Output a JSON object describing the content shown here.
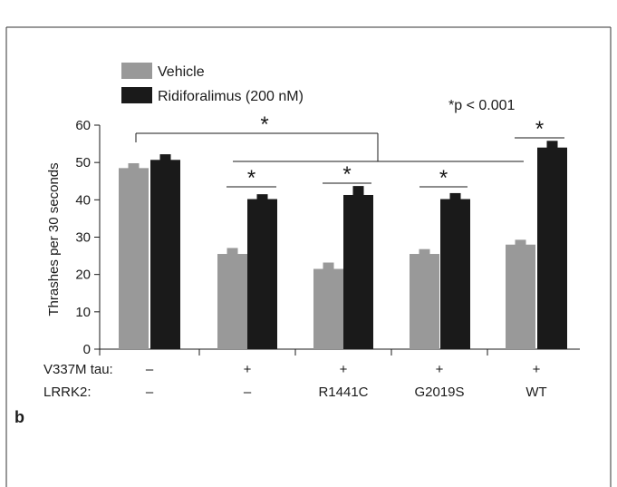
{
  "chart_data": {
    "type": "bar",
    "ylabel": "Thrashes per 30 seconds",
    "ylim": [
      0,
      60
    ],
    "yticks": [
      0,
      10,
      20,
      30,
      40,
      50,
      60
    ],
    "row_labels": [
      {
        "title": "V337M tau:",
        "values": [
          "–",
          "+",
          "+",
          "+",
          "+"
        ]
      },
      {
        "title": "LRRK2:",
        "values": [
          "–",
          "–",
          "R1441C",
          "G2019S",
          "WT"
        ]
      }
    ],
    "series": [
      {
        "name": "Vehicle",
        "color": "#999999",
        "values": [
          48.5,
          25.5,
          21.5,
          25.5,
          28.0
        ],
        "errors": [
          1.3,
          1.6,
          1.7,
          1.3,
          1.3
        ]
      },
      {
        "name": "Ridiforalimus (200 nM)",
        "color": "#1a1a1a",
        "values": [
          50.7,
          40.2,
          41.3,
          40.2,
          54.0
        ],
        "errors": [
          1.5,
          1.3,
          2.4,
          1.6,
          1.8
        ]
      }
    ],
    "annotation": "*p < 0.001",
    "star": "*",
    "panel_label": "b",
    "legend_position": "top-left"
  }
}
